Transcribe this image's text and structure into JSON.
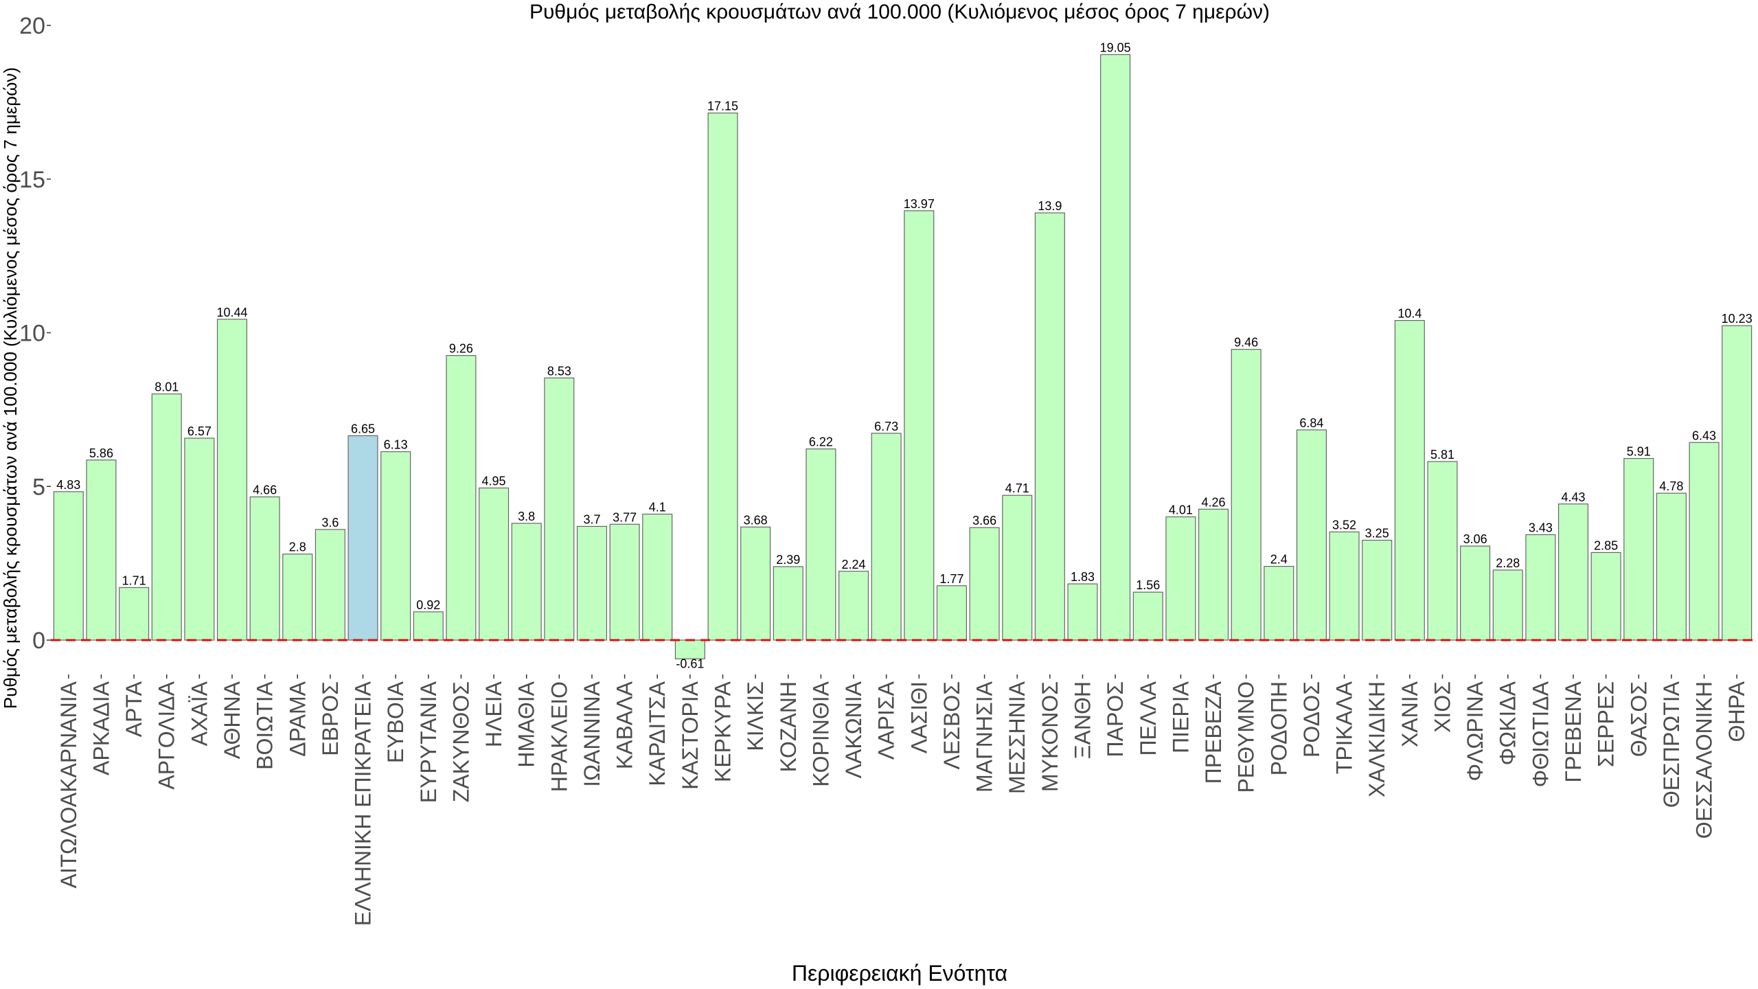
{
  "chart_data": {
    "type": "bar",
    "title": "Ρυθμός μεταβολής κρουσμάτων ανά 100.000 (Κυλιόμενος μέσος όρος 7 ημερών)",
    "xlabel": "Περιφερειακή Ενότητα",
    "ylabel": "Ρυθμός μεταβολής κρουσμάτων ανά 100.000 (Κυλιόμενος μέσος όρος 7 ημερών)",
    "ylim": [
      -1.1,
      20.2
    ],
    "yticks": [
      0,
      5,
      10,
      15,
      20
    ],
    "reference_line": 0,
    "grid": false,
    "colors": {
      "default_bar": "#c1ffc1",
      "highlight_bar": "#add8e6",
      "bar_border": "#666666",
      "reference_line": "#dd1111"
    },
    "highlight_category": "ΕΛΛΗΝΙΚΗ ΕΠΙΚΡΑΤΕΙΑ",
    "categories": [
      "ΑΙΤΩΛΟΑΚΑΡΝΑΝΙΑ",
      "ΑΡΚΑΔΙΑ",
      "ΑΡΤΑ",
      "ΑΡΓΟΛΙΔΑ",
      "ΑΧΑΪΑ",
      "ΑΘΗΝΑ",
      "ΒΟΙΩΤΙΑ",
      "ΔΡΑΜΑ",
      "ΕΒΡΟΣ",
      "ΕΛΛΗΝΙΚΗ ΕΠΙΚΡΑΤΕΙΑ",
      "ΕΥΒΟΙΑ",
      "ΕΥΡΥΤΑΝΙΑ",
      "ΖΑΚΥΝΘΟΣ",
      "ΗΛΕΙΑ",
      "ΗΜΑΘΙΑ",
      "ΗΡΑΚΛΕΙΟ",
      "ΙΩΑΝΝΙΝΑ",
      "ΚΑΒΑΛΑ",
      "ΚΑΡΔΙΤΣΑ",
      "ΚΑΣΤΟΡΙΑ",
      "ΚΕΡΚΥΡΑ",
      "ΚΙΛΚΙΣ",
      "ΚΟΖΑΝΗ",
      "ΚΟΡΙΝΘΙΑ",
      "ΛΑΚΩΝΙΑ",
      "ΛΑΡΙΣΑ",
      "ΛΑΣΙΘΙ",
      "ΛΕΣΒΟΣ",
      "ΜΑΓΝΗΣΙΑ",
      "ΜΕΣΣΗΝΙΑ",
      "ΜΥΚΟΝΟΣ",
      "ΞΑΝΘΗ",
      "ΠΑΡΟΣ",
      "ΠΕΛΛΑ",
      "ΠΙΕΡΙΑ",
      "ΠΡΕΒΕΖΑ",
      "ΡΕΘΥΜΝΟ",
      "ΡΟΔΟΠΗ",
      "ΡΟΔΟΣ",
      "ΤΡΙΚΑΛΑ",
      "ΧΑΛΚΙΔΙΚΗ",
      "ΧΑΝΙΑ",
      "ΧΙΟΣ",
      "ΦΛΩΡΙΝΑ",
      "ΦΩΚΙΔΑ",
      "ΦΘΙΩΤΙΔΑ",
      "ΓΡΕΒΕΝΑ",
      "ΣΕΡΡΕΣ",
      "ΘΑΣΟΣ",
      "ΘΕΣΠΡΩΤΙΑ",
      "ΘΕΣΣΑΛΟΝΙΚΗ",
      "ΘΗΡΑ"
    ],
    "values": [
      4.83,
      5.86,
      1.71,
      8.01,
      6.57,
      10.44,
      4.66,
      2.8,
      3.6,
      6.65,
      6.13,
      0.92,
      9.26,
      4.95,
      3.8,
      8.53,
      3.7,
      3.77,
      4.1,
      -0.61,
      17.15,
      3.68,
      2.39,
      6.22,
      2.24,
      6.73,
      13.97,
      1.77,
      3.66,
      4.71,
      13.9,
      1.83,
      19.05,
      1.56,
      4.01,
      4.26,
      9.46,
      2.4,
      6.84,
      3.52,
      3.25,
      10.4,
      5.81,
      3.06,
      2.28,
      3.43,
      4.43,
      2.85,
      5.91,
      4.78,
      6.43,
      10.23
    ]
  }
}
